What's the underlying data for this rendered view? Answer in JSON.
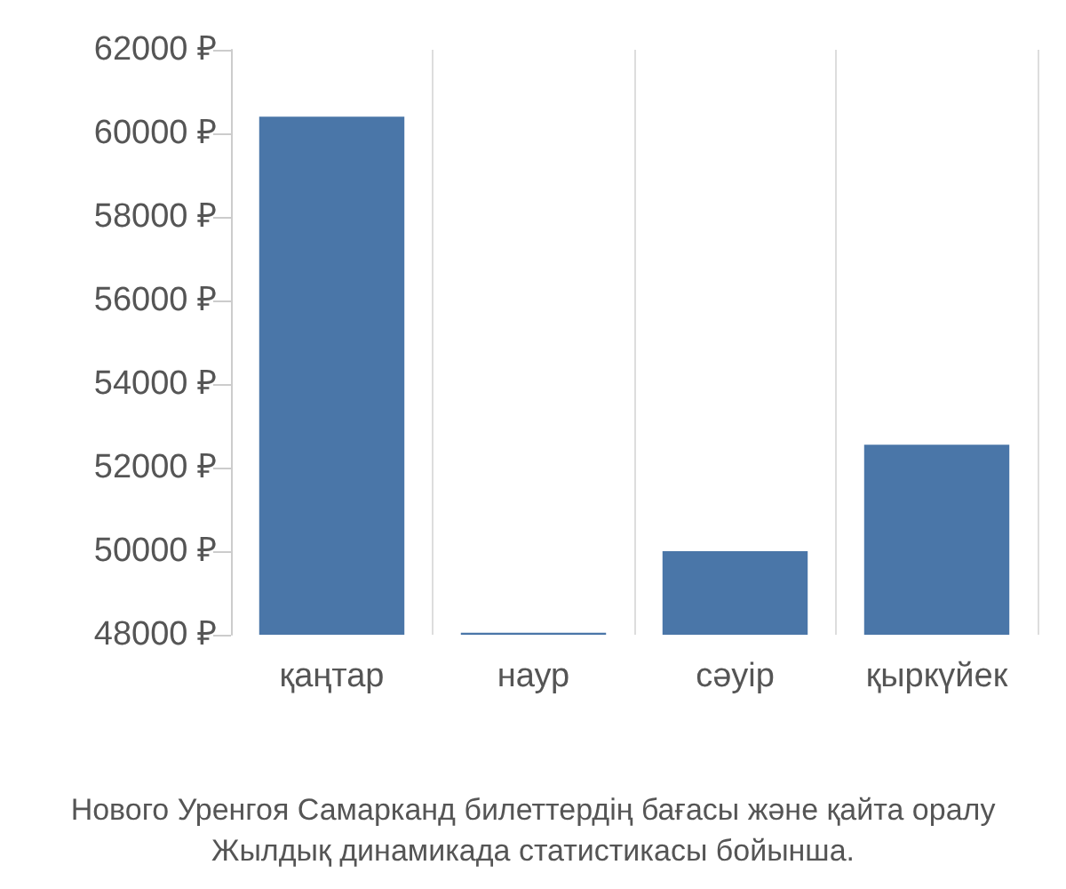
{
  "chart_data": {
    "type": "bar",
    "title": "Нового Уренгоя Самарканд билеттердің бағасы және қайта оралу",
    "subtitle": "Жылдық динамикада статистикасы бойынша.",
    "categories": [
      "қаңтар",
      "наур",
      "сәуір",
      "қыркүйек"
    ],
    "values": [
      60400,
      48050,
      50000,
      52550
    ],
    "color": "#4a76a8",
    "ylim": [
      48000,
      62000
    ],
    "yticks": [
      {
        "value": 48000,
        "label": "48000 ₽"
      },
      {
        "value": 50000,
        "label": "50000 ₽"
      },
      {
        "value": 52000,
        "label": "52000 ₽"
      },
      {
        "value": 54000,
        "label": "54000 ₽"
      },
      {
        "value": 56000,
        "label": "56000 ₽"
      },
      {
        "value": 58000,
        "label": "58000 ₽"
      },
      {
        "value": 60000,
        "label": "60000 ₽"
      },
      {
        "value": 62000,
        "label": "62000 ₽"
      }
    ],
    "grid": "x"
  }
}
